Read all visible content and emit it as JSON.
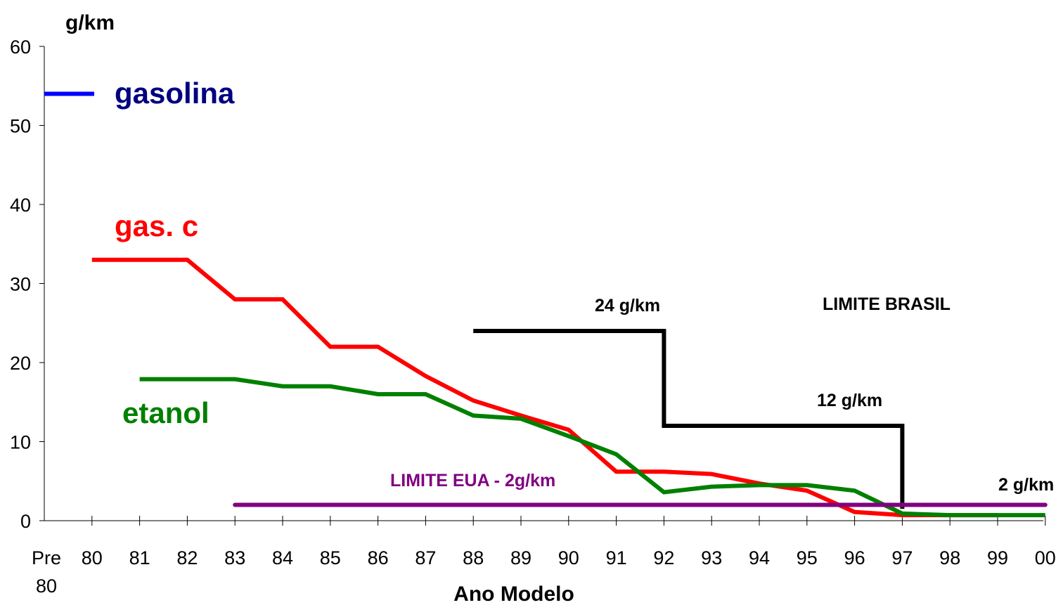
{
  "chart_data": {
    "type": "line",
    "ylabel": "g/km",
    "xlabel": "Ano Modelo",
    "ylim": [
      0,
      60
    ],
    "yticks": [
      "0",
      "10",
      "20",
      "30",
      "40",
      "50",
      "60"
    ],
    "categories": [
      "Pre 80",
      "80",
      "81",
      "82",
      "83",
      "84",
      "85",
      "86",
      "87",
      "88",
      "89",
      "90",
      "91",
      "92",
      "93",
      "94",
      "95",
      "96",
      "97",
      "98",
      "99",
      "00"
    ],
    "grid": false,
    "legend": "inline labels",
    "series": [
      {
        "name": "gasolina",
        "color": "#0000ff",
        "points": [
          {
            "x": "Pre 80",
            "y": 54
          }
        ]
      },
      {
        "name": "gas. c",
        "color": "#ff0000",
        "points": [
          {
            "x": "80",
            "y": 33
          },
          {
            "x": "81",
            "y": 33
          },
          {
            "x": "82",
            "y": 33
          },
          {
            "x": "83",
            "y": 28
          },
          {
            "x": "84",
            "y": 28
          },
          {
            "x": "85",
            "y": 22
          },
          {
            "x": "86",
            "y": 22
          },
          {
            "x": "87",
            "y": 18.3
          },
          {
            "x": "88",
            "y": 15.2
          },
          {
            "x": "89",
            "y": 13.3
          },
          {
            "x": "90",
            "y": 11.5
          },
          {
            "x": "91",
            "y": 6.2
          },
          {
            "x": "92",
            "y": 6.2
          },
          {
            "x": "93",
            "y": 5.9
          },
          {
            "x": "94",
            "y": 4.7
          },
          {
            "x": "95",
            "y": 3.8
          },
          {
            "x": "96",
            "y": 1.1
          },
          {
            "x": "97",
            "y": 0.7
          },
          {
            "x": "98",
            "y": 0.7
          },
          {
            "x": "99",
            "y": 0.7
          }
        ]
      },
      {
        "name": "etanol",
        "color": "#008000",
        "points": [
          {
            "x": "81",
            "y": 17.9
          },
          {
            "x": "82",
            "y": 17.9
          },
          {
            "x": "83",
            "y": 17.9
          },
          {
            "x": "84",
            "y": 17
          },
          {
            "x": "85",
            "y": 17
          },
          {
            "x": "86",
            "y": 16
          },
          {
            "x": "87",
            "y": 16
          },
          {
            "x": "88",
            "y": 13.3
          },
          {
            "x": "89",
            "y": 12.9
          },
          {
            "x": "90",
            "y": 10.7
          },
          {
            "x": "91",
            "y": 8.4
          },
          {
            "x": "92",
            "y": 3.6
          },
          {
            "x": "93",
            "y": 4.3
          },
          {
            "x": "94",
            "y": 4.5
          },
          {
            "x": "95",
            "y": 4.5
          },
          {
            "x": "96",
            "y": 3.8
          },
          {
            "x": "97",
            "y": 0.9
          },
          {
            "x": "98",
            "y": 0.7
          },
          {
            "x": "99",
            "y": 0.7
          },
          {
            "x": "00",
            "y": 0.7
          }
        ]
      },
      {
        "name": "LIMITE BRASIL",
        "color": "#000000",
        "points": [
          {
            "x": "88",
            "y": 24
          },
          {
            "x": "92",
            "y": 24
          },
          {
            "x": "92",
            "y": 12
          },
          {
            "x": "97",
            "y": 12
          },
          {
            "x": "97",
            "y": 1.5
          }
        ]
      },
      {
        "name": "LIMITE EUA - 2g/km",
        "color": "#800080",
        "points": [
          {
            "x": "83",
            "y": 2
          },
          {
            "x": "00",
            "y": 2
          }
        ]
      }
    ],
    "annotations": {
      "gasolina": "gasolina",
      "gas_c": "gas. c",
      "etanol": "etanol",
      "limite_brasil": "LIMITE BRASIL",
      "limit_24": "24 g/km",
      "limit_12": "12 g/km",
      "limite_eua": "LIMITE EUA - 2g/km",
      "limit_2": "2 g/km"
    }
  }
}
